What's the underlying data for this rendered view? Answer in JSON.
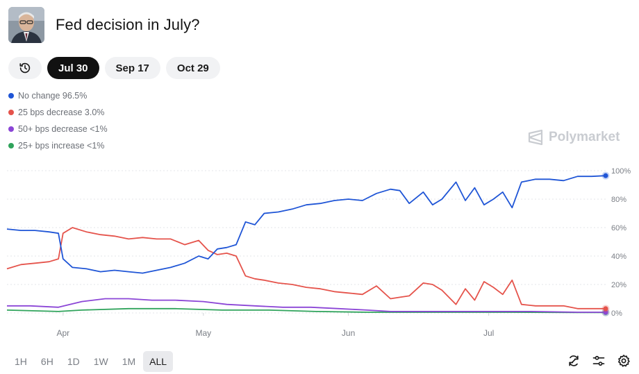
{
  "market": {
    "title": "Fed decision in July?"
  },
  "tabs": {
    "history_icon": "history-icon",
    "items": [
      {
        "label": "Jul 30",
        "active": true
      },
      {
        "label": "Sep 17",
        "active": false
      },
      {
        "label": "Oct 29",
        "active": false
      }
    ]
  },
  "watermark": {
    "text": "Polymarket"
  },
  "ranges": {
    "items": [
      {
        "label": "1H",
        "active": false
      },
      {
        "label": "6H",
        "active": false
      },
      {
        "label": "1D",
        "active": false
      },
      {
        "label": "1W",
        "active": false
      },
      {
        "label": "1M",
        "active": false
      },
      {
        "label": "ALL",
        "active": true
      }
    ]
  },
  "tools": [
    "refresh-icon",
    "sliders-icon",
    "gear-icon"
  ],
  "chart_data": {
    "type": "line",
    "x_ticks": [
      "Apr",
      "May",
      "Jun",
      "Jul"
    ],
    "x_range": [
      "2025-03-20",
      "2025-07-26"
    ],
    "y_ticks": [
      "100%",
      "80%",
      "60%",
      "40%",
      "20%",
      "0%"
    ],
    "ylim": [
      0,
      100
    ],
    "grid": true,
    "legend_position": "top-left",
    "series": [
      {
        "name": "No change",
        "label": "No change 96.5%",
        "color": "#1f55d6",
        "points": [
          [
            "2025-03-20",
            59
          ],
          [
            "2025-03-23",
            58
          ],
          [
            "2025-03-26",
            58
          ],
          [
            "2025-03-29",
            57
          ],
          [
            "2025-03-31",
            56
          ],
          [
            "2025-04-01",
            38
          ],
          [
            "2025-04-03",
            32
          ],
          [
            "2025-04-06",
            31
          ],
          [
            "2025-04-09",
            29
          ],
          [
            "2025-04-12",
            30
          ],
          [
            "2025-04-15",
            29
          ],
          [
            "2025-04-18",
            28
          ],
          [
            "2025-04-21",
            30
          ],
          [
            "2025-04-24",
            32
          ],
          [
            "2025-04-27",
            35
          ],
          [
            "2025-04-30",
            40
          ],
          [
            "2025-05-02",
            38
          ],
          [
            "2025-05-04",
            45
          ],
          [
            "2025-05-06",
            46
          ],
          [
            "2025-05-08",
            48
          ],
          [
            "2025-05-10",
            64
          ],
          [
            "2025-05-12",
            62
          ],
          [
            "2025-05-14",
            70
          ],
          [
            "2025-05-17",
            71
          ],
          [
            "2025-05-20",
            73
          ],
          [
            "2025-05-23",
            76
          ],
          [
            "2025-05-26",
            77
          ],
          [
            "2025-05-29",
            79
          ],
          [
            "2025-06-01",
            80
          ],
          [
            "2025-06-04",
            79
          ],
          [
            "2025-06-07",
            84
          ],
          [
            "2025-06-10",
            87
          ],
          [
            "2025-06-12",
            86
          ],
          [
            "2025-06-14",
            77
          ],
          [
            "2025-06-17",
            85
          ],
          [
            "2025-06-19",
            76
          ],
          [
            "2025-06-21",
            80
          ],
          [
            "2025-06-24",
            92
          ],
          [
            "2025-06-26",
            79
          ],
          [
            "2025-06-28",
            88
          ],
          [
            "2025-06-30",
            76
          ],
          [
            "2025-07-02",
            80
          ],
          [
            "2025-07-04",
            85
          ],
          [
            "2025-07-06",
            74
          ],
          [
            "2025-07-08",
            92
          ],
          [
            "2025-07-11",
            94
          ],
          [
            "2025-07-14",
            94
          ],
          [
            "2025-07-17",
            93
          ],
          [
            "2025-07-20",
            96
          ],
          [
            "2025-07-23",
            96
          ],
          [
            "2025-07-26",
            96.5
          ]
        ]
      },
      {
        "name": "25 bps decrease",
        "label": "25 bps decrease 3.0%",
        "color": "#e5534b",
        "points": [
          [
            "2025-03-20",
            31
          ],
          [
            "2025-03-23",
            34
          ],
          [
            "2025-03-26",
            35
          ],
          [
            "2025-03-29",
            36
          ],
          [
            "2025-03-31",
            38
          ],
          [
            "2025-04-01",
            56
          ],
          [
            "2025-04-03",
            60
          ],
          [
            "2025-04-06",
            57
          ],
          [
            "2025-04-09",
            55
          ],
          [
            "2025-04-12",
            54
          ],
          [
            "2025-04-15",
            52
          ],
          [
            "2025-04-18",
            53
          ],
          [
            "2025-04-21",
            52
          ],
          [
            "2025-04-24",
            52
          ],
          [
            "2025-04-27",
            48
          ],
          [
            "2025-04-30",
            51
          ],
          [
            "2025-05-02",
            44
          ],
          [
            "2025-05-04",
            41
          ],
          [
            "2025-05-06",
            42
          ],
          [
            "2025-05-08",
            40
          ],
          [
            "2025-05-10",
            26
          ],
          [
            "2025-05-12",
            24
          ],
          [
            "2025-05-14",
            23
          ],
          [
            "2025-05-17",
            21
          ],
          [
            "2025-05-20",
            20
          ],
          [
            "2025-05-23",
            18
          ],
          [
            "2025-05-26",
            17
          ],
          [
            "2025-05-29",
            15
          ],
          [
            "2025-06-01",
            14
          ],
          [
            "2025-06-04",
            13
          ],
          [
            "2025-06-07",
            19
          ],
          [
            "2025-06-10",
            10
          ],
          [
            "2025-06-12",
            11
          ],
          [
            "2025-06-14",
            12
          ],
          [
            "2025-06-17",
            21
          ],
          [
            "2025-06-19",
            20
          ],
          [
            "2025-06-21",
            16
          ],
          [
            "2025-06-24",
            6
          ],
          [
            "2025-06-26",
            17
          ],
          [
            "2025-06-28",
            9
          ],
          [
            "2025-06-30",
            22
          ],
          [
            "2025-07-02",
            18
          ],
          [
            "2025-07-04",
            13
          ],
          [
            "2025-07-06",
            23
          ],
          [
            "2025-07-08",
            6
          ],
          [
            "2025-07-11",
            5
          ],
          [
            "2025-07-14",
            5
          ],
          [
            "2025-07-17",
            5
          ],
          [
            "2025-07-20",
            3
          ],
          [
            "2025-07-23",
            3
          ],
          [
            "2025-07-26",
            3
          ]
        ]
      },
      {
        "name": "50+ bps decrease",
        "label": "50+ bps decrease <1%",
        "color": "#8b45d6",
        "points": [
          [
            "2025-03-20",
            5
          ],
          [
            "2025-03-25",
            5
          ],
          [
            "2025-03-31",
            4
          ],
          [
            "2025-04-05",
            8
          ],
          [
            "2025-04-10",
            10
          ],
          [
            "2025-04-15",
            10
          ],
          [
            "2025-04-20",
            9
          ],
          [
            "2025-04-25",
            9
          ],
          [
            "2025-05-01",
            8
          ],
          [
            "2025-05-06",
            6
          ],
          [
            "2025-05-12",
            5
          ],
          [
            "2025-05-18",
            4
          ],
          [
            "2025-05-24",
            4
          ],
          [
            "2025-05-30",
            3
          ],
          [
            "2025-06-05",
            2
          ],
          [
            "2025-06-10",
            1
          ],
          [
            "2025-06-20",
            1
          ],
          [
            "2025-06-30",
            1
          ],
          [
            "2025-07-10",
            1
          ],
          [
            "2025-07-20",
            0.5
          ],
          [
            "2025-07-26",
            0.5
          ]
        ]
      },
      {
        "name": "25+ bps increase",
        "label": "25+ bps increase <1%",
        "color": "#2fa35b",
        "points": [
          [
            "2025-03-20",
            2
          ],
          [
            "2025-03-31",
            1
          ],
          [
            "2025-04-05",
            2
          ],
          [
            "2025-04-15",
            3
          ],
          [
            "2025-04-25",
            3
          ],
          [
            "2025-05-05",
            2
          ],
          [
            "2025-05-15",
            2
          ],
          [
            "2025-05-25",
            1
          ],
          [
            "2025-06-05",
            0.5
          ],
          [
            "2025-06-20",
            0.5
          ],
          [
            "2025-07-05",
            0.5
          ],
          [
            "2025-07-20",
            0.3
          ],
          [
            "2025-07-26",
            0.3
          ]
        ]
      }
    ]
  }
}
